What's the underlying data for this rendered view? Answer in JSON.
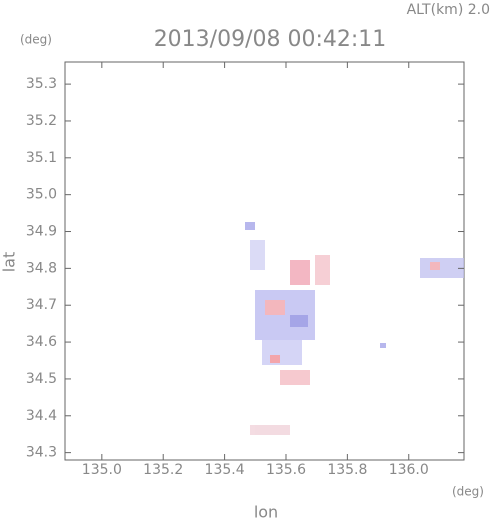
{
  "chart_data": {
    "type": "scatter",
    "title": "2013/09/08 00:42:11",
    "subtitle": "ALT(km) 2.0",
    "x_label": "lon",
    "y_label": "lat",
    "x_unit": "(deg)",
    "y_unit": "(deg)",
    "xlim": [
      134.88,
      136.18
    ],
    "ylim": [
      34.28,
      35.36
    ],
    "xticks": [
      {
        "value": 135,
        "label": "135.0"
      },
      135.2,
      135.4,
      135.6,
      135.8,
      {
        "value": 136,
        "label": "136.0"
      }
    ],
    "yticks": [
      34.3,
      34.4,
      34.5,
      34.6,
      34.7,
      34.8,
      34.9,
      {
        "value": 35,
        "label": "35.0"
      },
      35.1,
      35.2,
      35.3
    ]
  }
}
